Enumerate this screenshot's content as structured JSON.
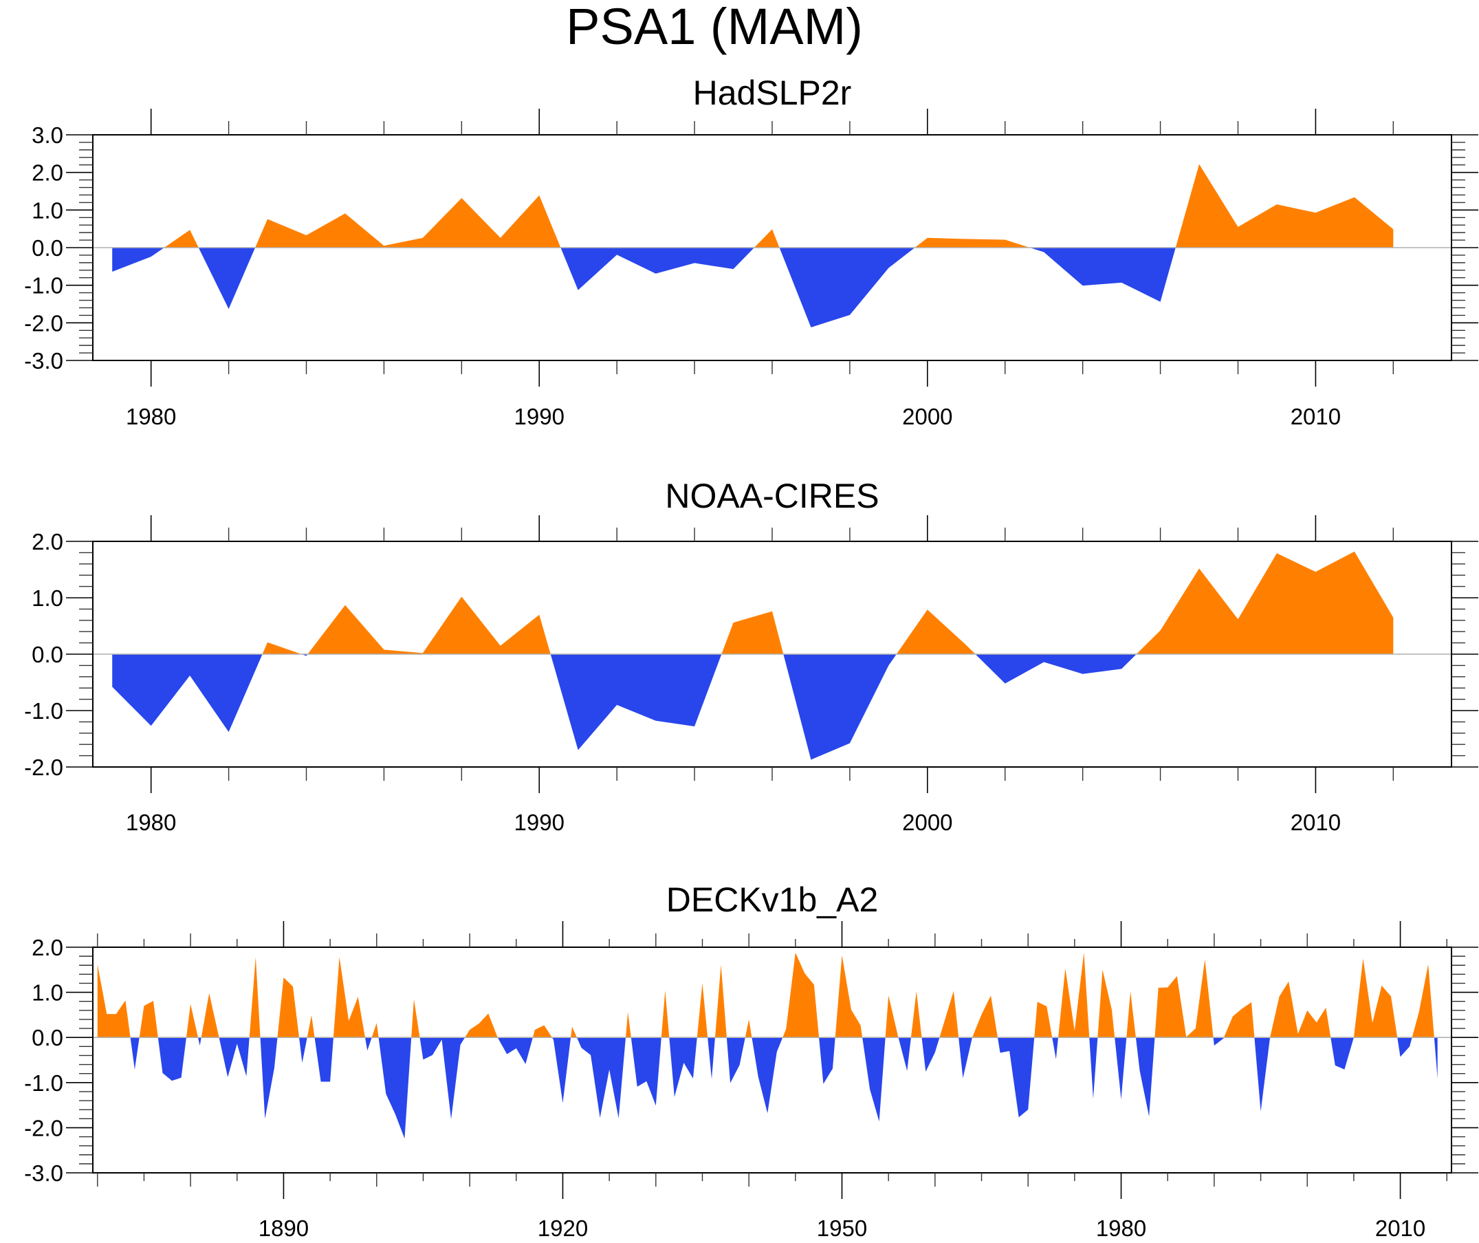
{
  "figure": {
    "title": "PSA1 (MAM)"
  },
  "colors": {
    "positive": "#FF8000",
    "negative": "#2846EC",
    "zero_line": "#B0B0B0",
    "axes": "#000000"
  },
  "chart_data": [
    {
      "type": "area",
      "title": "HadSLP2r",
      "xlabel": "",
      "ylabel": "",
      "xlim": [
        1978.5,
        2013.5
      ],
      "ylim": [
        -3.0,
        3.0
      ],
      "yticks": [
        3.0,
        2.0,
        1.0,
        0.0,
        -1.0,
        -2.0,
        -3.0
      ],
      "ytick_labels": [
        "3.0",
        "2.0",
        "1.0",
        "0.0",
        "-1.0",
        "-2.0",
        "-3.0"
      ],
      "yminor_step": 0.2,
      "xticks": [
        1980,
        1990,
        2000,
        2010
      ],
      "xtick_labels": [
        "1980",
        "1990",
        "2000",
        "2010"
      ],
      "xminor_step": 2,
      "fill": "positive orange above zero, negative blue below zero",
      "x": [
        1979,
        1980,
        1981,
        1982,
        1983,
        1984,
        1985,
        1986,
        1987,
        1988,
        1989,
        1990,
        1991,
        1992,
        1993,
        1994,
        1995,
        1996,
        1997,
        1998,
        1999,
        2000,
        2001,
        2002,
        2003,
        2004,
        2005,
        2006,
        2007,
        2008,
        2009,
        2010,
        2011,
        2012
      ],
      "values": [
        -0.64,
        -0.24,
        0.47,
        -1.63,
        0.76,
        0.33,
        0.91,
        0.05,
        0.26,
        1.32,
        0.26,
        1.39,
        -1.13,
        -0.19,
        -0.69,
        -0.41,
        -0.57,
        0.49,
        -2.12,
        -1.79,
        -0.54,
        0.26,
        0.23,
        0.21,
        -0.12,
        -1.01,
        -0.93,
        -1.44,
        2.22,
        0.55,
        1.15,
        0.93,
        1.34,
        0.49
      ]
    },
    {
      "type": "area",
      "title": "NOAA-CIRES",
      "xlabel": "",
      "ylabel": "",
      "xlim": [
        1978.5,
        2013.5
      ],
      "ylim": [
        -2.0,
        2.0
      ],
      "yticks": [
        2.0,
        1.0,
        0.0,
        -1.0,
        -2.0
      ],
      "ytick_labels": [
        "2.0",
        "1.0",
        "0.0",
        "-1.0",
        "-2.0"
      ],
      "yminor_step": 0.2,
      "xticks": [
        1980,
        1990,
        2000,
        2010
      ],
      "xtick_labels": [
        "1980",
        "1990",
        "2000",
        "2010"
      ],
      "xminor_step": 2,
      "fill": "positive orange above zero, negative blue below zero",
      "x": [
        1979,
        1980,
        1981,
        1982,
        1983,
        1984,
        1985,
        1986,
        1987,
        1988,
        1989,
        1990,
        1991,
        1992,
        1993,
        1994,
        1995,
        1996,
        1997,
        1998,
        1999,
        2000,
        2001,
        2002,
        2003,
        2004,
        2005,
        2006,
        2007,
        2008,
        2009,
        2010,
        2011,
        2012
      ],
      "values": [
        -0.58,
        -1.27,
        -0.38,
        -1.38,
        0.21,
        -0.03,
        0.87,
        0.08,
        0.02,
        1.02,
        0.15,
        0.7,
        -1.7,
        -0.9,
        -1.18,
        -1.28,
        0.56,
        0.76,
        -1.87,
        -1.58,
        -0.2,
        0.79,
        0.16,
        -0.52,
        -0.14,
        -0.35,
        -0.26,
        0.42,
        1.52,
        0.62,
        1.79,
        1.46,
        1.82,
        0.65
      ]
    },
    {
      "type": "area",
      "title": "DECKv1b_A2",
      "xlabel": "",
      "ylabel": "",
      "xlim": [
        1869.5,
        2015.5
      ],
      "ylim": [
        -3.0,
        2.0
      ],
      "yticks": [
        2.0,
        1.0,
        0.0,
        -1.0,
        -2.0,
        -3.0
      ],
      "ytick_labels": [
        "2.0",
        "1.0",
        "0.0",
        "-1.0",
        "-2.0",
        "-3.0"
      ],
      "yminor_step": 0.2,
      "xticks": [
        1890,
        1920,
        1950,
        1980,
        2010
      ],
      "xtick_labels": [
        "1890",
        "1920",
        "1950",
        "1980",
        "2010"
      ],
      "xminor_step": 10,
      "xmid_step": 5,
      "fill": "positive orange above zero, negative blue below zero",
      "x_start": 1870,
      "values": [
        1.62,
        0.52,
        0.52,
        0.82,
        -0.71,
        0.7,
        0.81,
        -0.79,
        -0.96,
        -0.89,
        0.74,
        -0.18,
        0.98,
        0.06,
        -0.88,
        -0.14,
        -0.86,
        1.78,
        -1.8,
        -0.68,
        1.33,
        1.13,
        -0.56,
        0.49,
        -0.98,
        -0.98,
        1.78,
        0.37,
        0.9,
        -0.29,
        0.32,
        -1.25,
        -1.7,
        -2.24,
        0.85,
        -0.49,
        -0.39,
        -0.05,
        -1.81,
        -0.16,
        0.17,
        0.31,
        0.53,
        0.0,
        -0.37,
        -0.24,
        -0.59,
        0.17,
        0.27,
        -0.05,
        -1.45,
        0.24,
        -0.23,
        -0.39,
        -1.78,
        -0.71,
        -1.79,
        0.56,
        -1.09,
        -0.97,
        -1.51,
        1.04,
        -1.32,
        -0.56,
        -0.91,
        1.2,
        -0.92,
        1.61,
        -1.01,
        -0.61,
        0.4,
        -0.87,
        -1.68,
        -0.32,
        0.19,
        1.88,
        1.42,
        1.17,
        -1.03,
        -0.69,
        1.82,
        0.61,
        0.27,
        -1.15,
        -1.86,
        0.93,
        0.05,
        -0.74,
        1.02,
        -0.76,
        -0.33,
        0.35,
        1.03,
        -0.9,
        0.0,
        0.51,
        0.93,
        -0.34,
        -0.3,
        -1.77,
        -1.6,
        0.79,
        0.69,
        -0.48,
        1.53,
        0.15,
        1.88,
        -1.36,
        1.5,
        0.61,
        -1.37,
        1.02,
        -0.74,
        -1.75,
        1.1,
        1.11,
        1.36,
        0.01,
        0.2,
        1.73,
        -0.18,
        -0.02,
        0.47,
        0.64,
        0.78,
        -1.64,
        0.0,
        0.91,
        1.24,
        0.08,
        0.6,
        0.33,
        0.66,
        -0.62,
        -0.71,
        0.0,
        1.75,
        0.32,
        1.15,
        0.91,
        -0.43,
        -0.2,
        0.56,
        1.62,
        -0.91
      ]
    }
  ]
}
